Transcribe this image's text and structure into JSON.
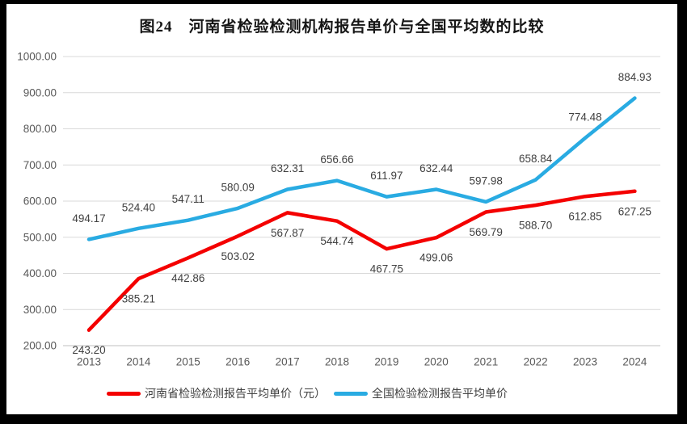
{
  "title": "图24　河南省检验检测机构报告单价与全国平均数的比较",
  "chart_data": {
    "type": "line",
    "title": "图24　河南省检验检测机构报告单价与全国平均数的比较",
    "categories": [
      "2013",
      "2014",
      "2015",
      "2016",
      "2017",
      "2018",
      "2019",
      "2020",
      "2021",
      "2022",
      "2023",
      "2024"
    ],
    "series": [
      {
        "name": "河南省检验检测报告平均单价（元）",
        "color": "#f40000",
        "label_position": "below",
        "values": [
          243.2,
          385.21,
          442.86,
          503.02,
          567.87,
          544.74,
          467.75,
          499.06,
          569.79,
          588.7,
          612.85,
          627.25
        ]
      },
      {
        "name": "全国检验检测报告平均单价",
        "color": "#29abe2",
        "label_position": "above",
        "values": [
          494.17,
          524.4,
          547.11,
          580.09,
          632.31,
          656.66,
          611.97,
          632.44,
          597.98,
          658.84,
          774.48,
          884.93
        ]
      }
    ],
    "xlabel": "",
    "ylabel": "",
    "ylim": [
      200,
      1000
    ],
    "ytick_step": 100,
    "ytick_labels": [
      "200.00",
      "300.00",
      "400.00",
      "500.00",
      "600.00",
      "700.00",
      "800.00",
      "900.00",
      "1000.00"
    ],
    "grid": true,
    "gridline_color": "#d9d9d9",
    "axis_line_color": "#bfbfbf",
    "tick_label_color": "#595959",
    "data_label_color": "#404040",
    "legend_position": "bottom"
  }
}
